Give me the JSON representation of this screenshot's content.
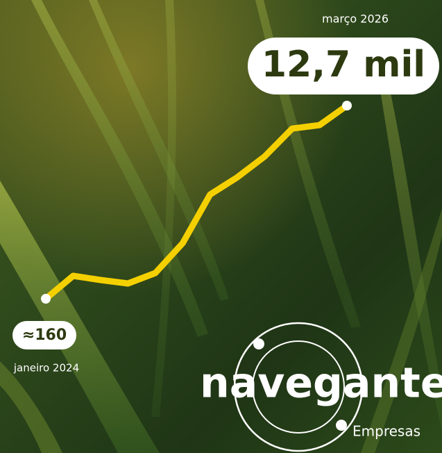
{
  "chart_data": {
    "type": "line",
    "categories": [
      "janeiro 2024",
      null,
      null,
      null,
      null,
      null,
      null,
      null,
      null,
      null,
      null,
      "março 2026"
    ],
    "values": [
      160,
      1649,
      1378,
      1152,
      1829,
      3768,
      6925,
      8053,
      9406,
      11210,
      11435,
      12700
    ],
    "value_labels": [
      "≈160",
      null,
      null,
      null,
      null,
      null,
      null,
      null,
      null,
      null,
      null,
      "12,7 mil"
    ],
    "color": "#f5d000"
  },
  "logo": {
    "name": "navegante",
    "subtitle": "Empresas"
  }
}
